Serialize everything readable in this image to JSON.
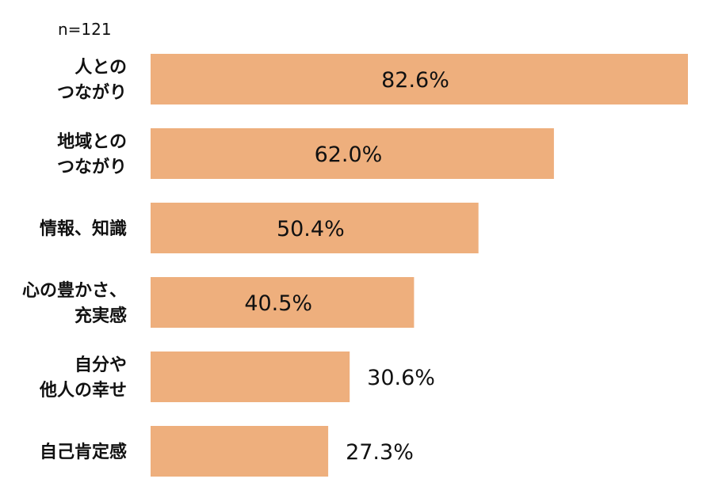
{
  "sample_note": "n=121",
  "colors": {
    "bar": "#EEAF7D",
    "text": "#111111"
  },
  "chart_data": {
    "type": "bar",
    "orientation": "horizontal",
    "categories": [
      [
        "人との",
        "つながり"
      ],
      [
        "地域との",
        "つながり"
      ],
      [
        "情報、知識"
      ],
      [
        "心の豊かさ、",
        "充実感"
      ],
      [
        "自分や",
        "他人の幸せ"
      ],
      [
        "自己肯定感"
      ]
    ],
    "values": [
      82.6,
      62.0,
      50.4,
      40.5,
      30.6,
      27.3
    ],
    "value_labels": [
      "82.6%",
      "62.0%",
      "50.4%",
      "40.5%",
      "30.6%",
      "27.3%"
    ],
    "xlim": [
      0,
      82.6
    ],
    "grid": false,
    "legend": "none"
  }
}
